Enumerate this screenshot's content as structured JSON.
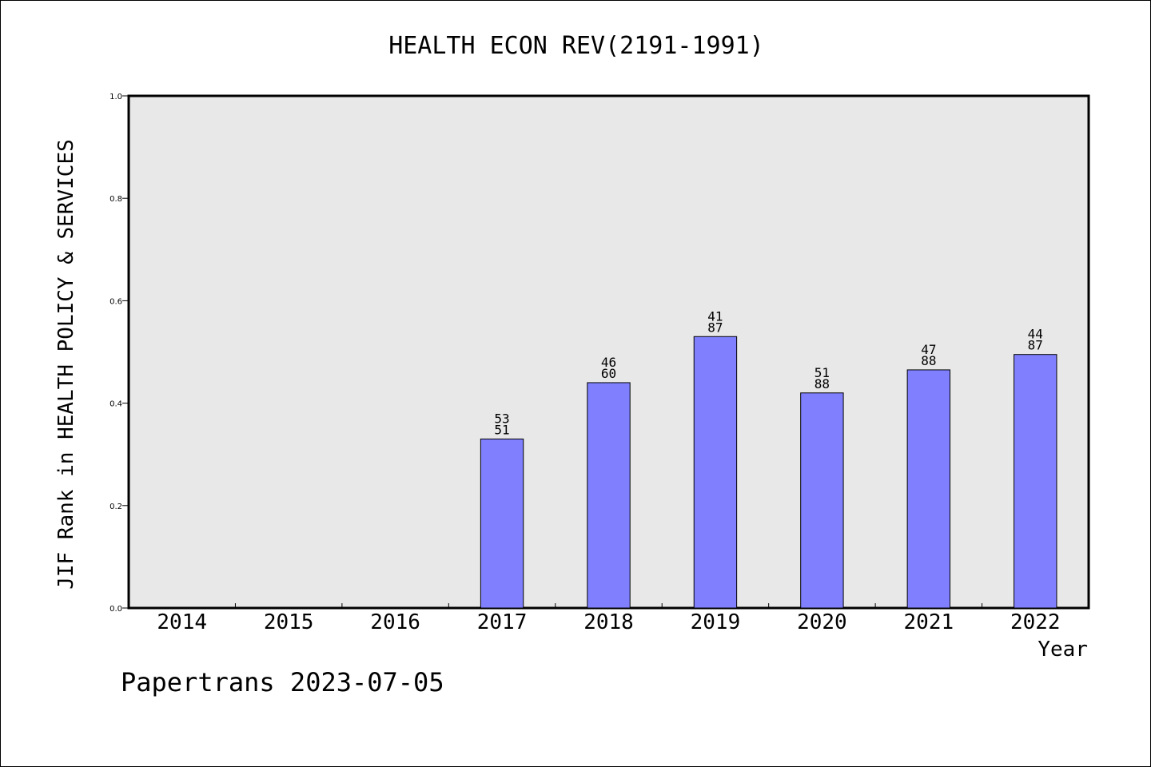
{
  "chart_data": {
    "type": "bar",
    "title": "HEALTH ECON REV(2191-1991)",
    "xlabel": "Year",
    "ylabel": "JIF Rank in HEALTH POLICY & SERVICES",
    "categories": [
      "2014",
      "2015",
      "2016",
      "2017",
      "2018",
      "2019",
      "2020",
      "2021",
      "2022"
    ],
    "values": [
      null,
      null,
      null,
      0.33,
      0.44,
      0.53,
      0.42,
      0.465,
      0.495
    ],
    "bar_labels": [
      null,
      null,
      null,
      [
        "53",
        "51"
      ],
      [
        "46",
        "60"
      ],
      [
        "41",
        "87"
      ],
      [
        "51",
        "88"
      ],
      [
        "47",
        "88"
      ],
      [
        "44",
        "87"
      ]
    ],
    "ylim": [
      0,
      1.0
    ],
    "yticks": [
      "0.0",
      "0.2",
      "0.4",
      "0.6",
      "0.8",
      "1.0"
    ],
    "grid": false,
    "colors": {
      "bar_fill": "#8080ff",
      "bar_stroke": "#000000",
      "plot_bg": "#e8e8e8"
    }
  },
  "footer": {
    "watermark": "Papertrans 2023-07-05"
  }
}
